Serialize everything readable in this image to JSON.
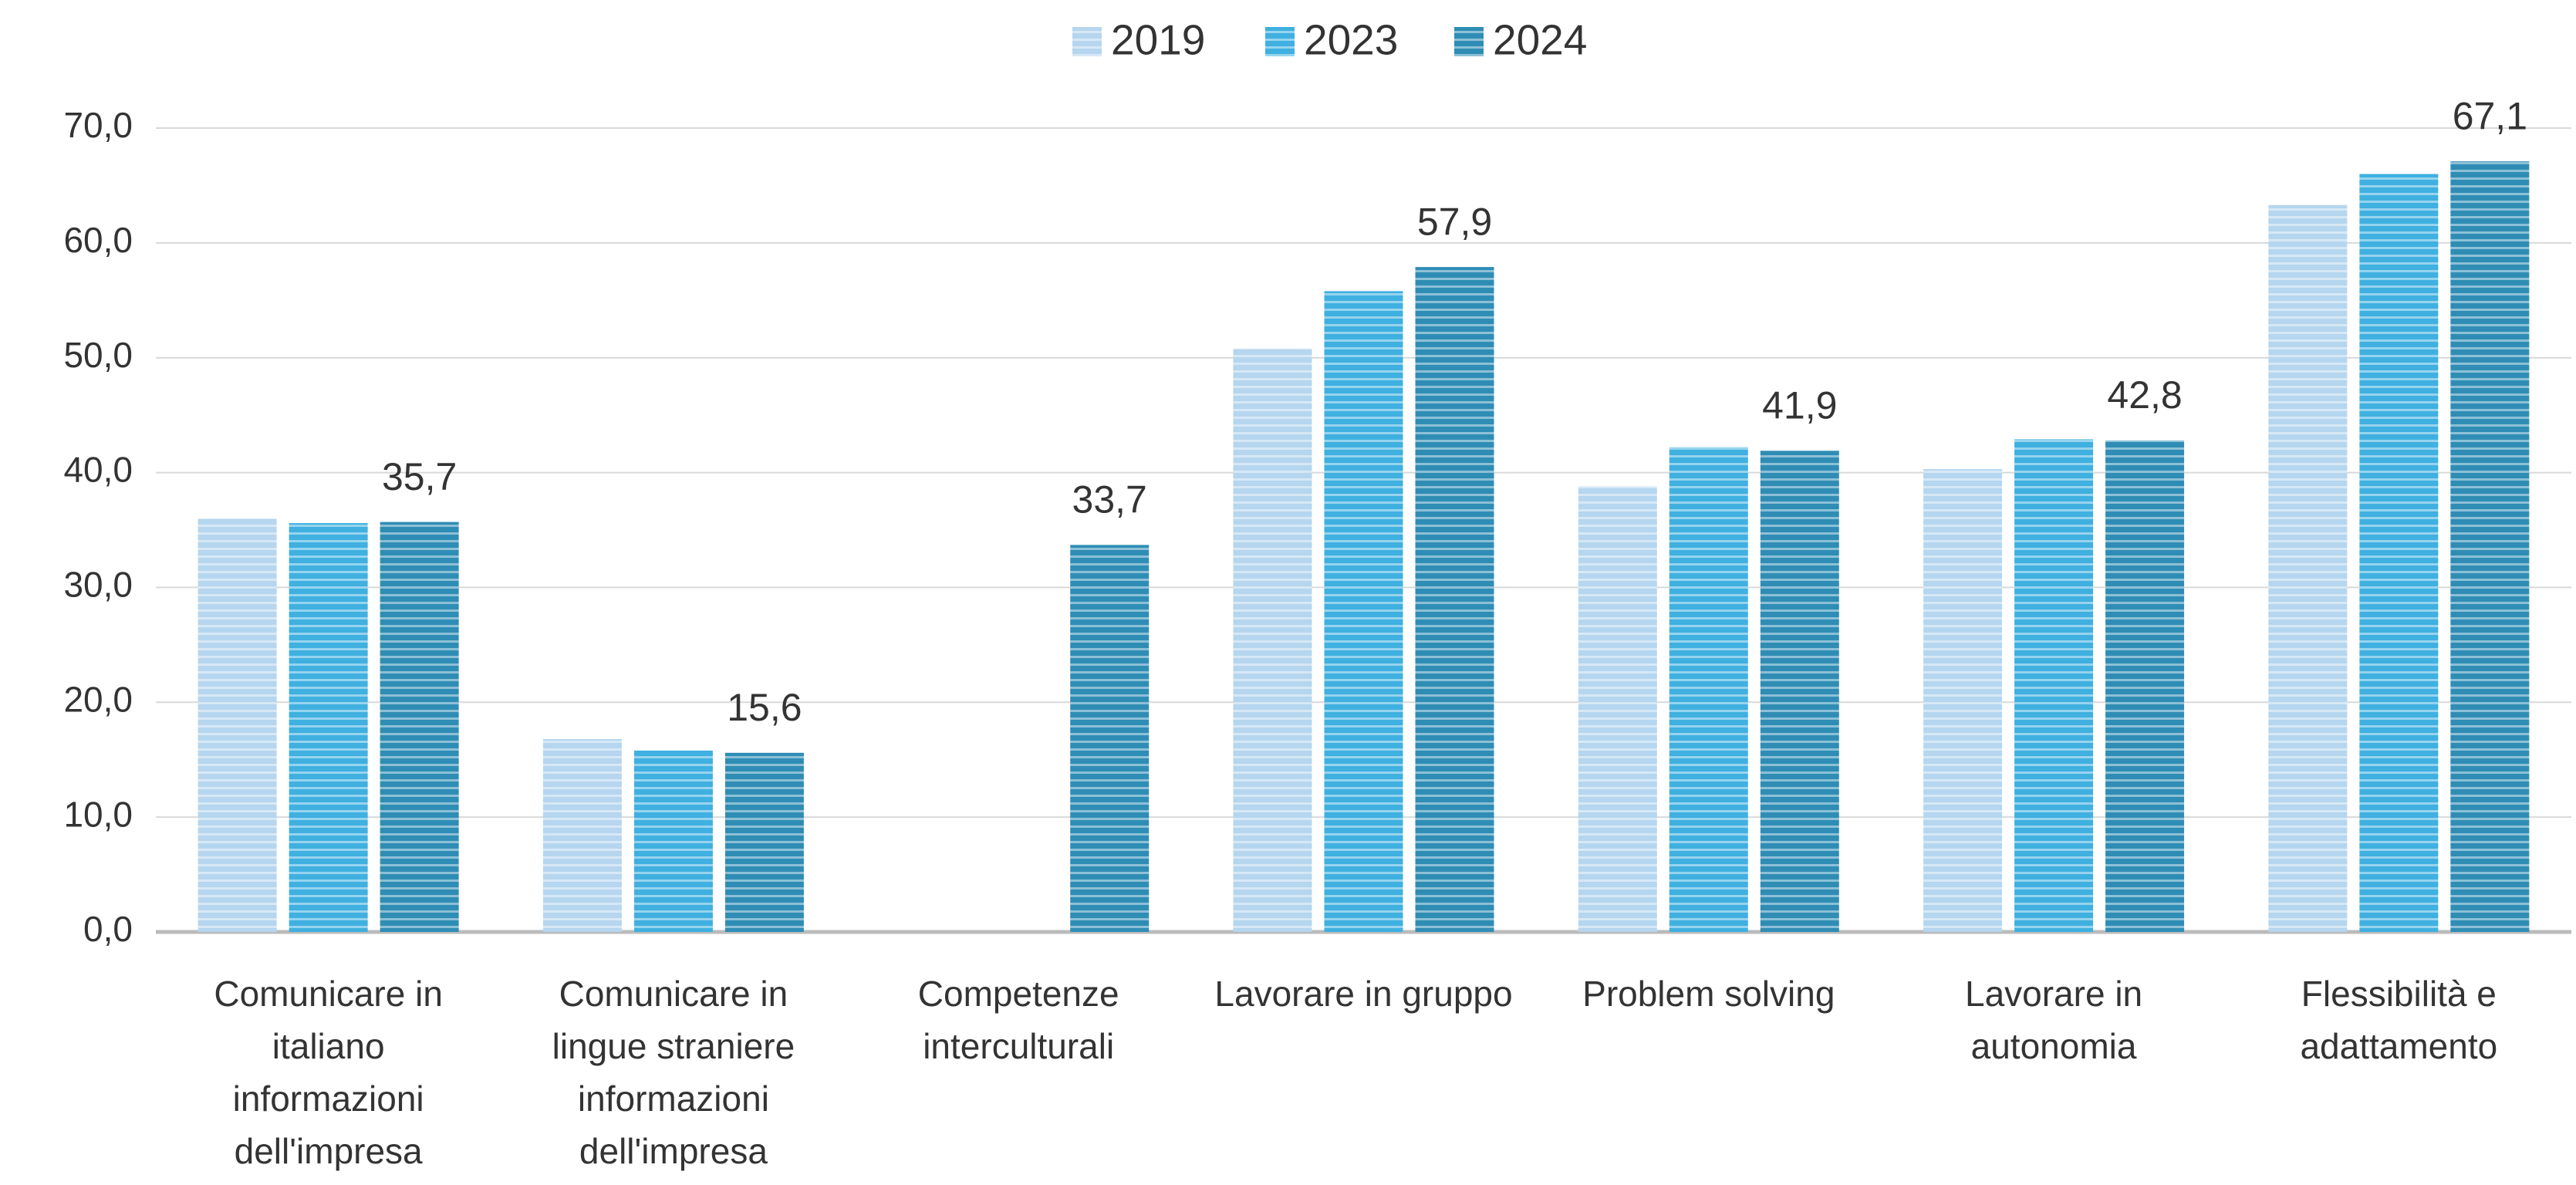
{
  "chart_data": {
    "type": "bar",
    "categories": [
      "Comunicare in italiano informazioni dell'impresa",
      "Comunicare in lingue straniere informazioni dell'impresa",
      "Competenze interculturali",
      "Lavorare in gruppo",
      "Problem solving",
      "Lavorare in autonomia",
      "Flessibilità e adattamento"
    ],
    "series": [
      {
        "name": "2019",
        "color": "#b5d6ee",
        "values": [
          36.0,
          16.8,
          null,
          50.8,
          38.8,
          40.3,
          63.3
        ]
      },
      {
        "name": "2023",
        "color": "#3fb0e0",
        "values": [
          35.6,
          15.8,
          null,
          55.8,
          42.2,
          42.9,
          66.0
        ]
      },
      {
        "name": "2024",
        "color": "#2f8db5",
        "values": [
          35.7,
          15.6,
          33.7,
          57.9,
          41.9,
          42.8,
          67.1
        ],
        "value_labels": [
          "35,7",
          "15,6",
          "33,7",
          "57,9",
          "41,9",
          "42,8",
          "67,1"
        ]
      }
    ],
    "ylim": [
      0,
      70
    ],
    "yticks": [
      {
        "value": 0,
        "label": "0,0"
      },
      {
        "value": 10,
        "label": "10,0"
      },
      {
        "value": 20,
        "label": "20,0"
      },
      {
        "value": 30,
        "label": "30,0"
      },
      {
        "value": 40,
        "label": "40,0"
      },
      {
        "value": 50,
        "label": "50,0"
      },
      {
        "value": 60,
        "label": "60,0"
      },
      {
        "value": 70,
        "label": "70,0"
      }
    ],
    "grid": true,
    "legend": "top"
  }
}
